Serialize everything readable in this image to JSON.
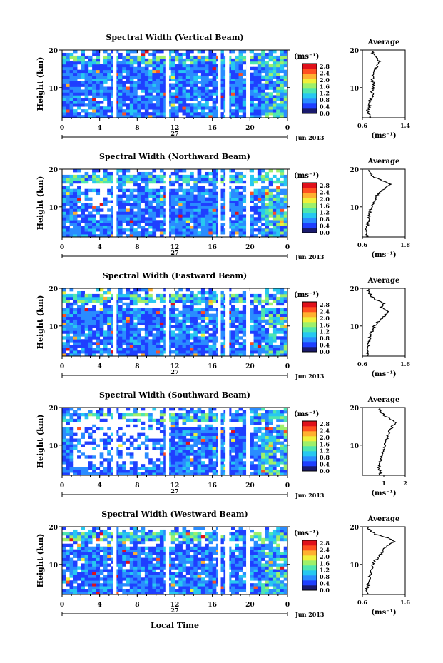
{
  "figure": {
    "xlabel": "Local Time",
    "date_label": "Jun 2013",
    "day_label": "27",
    "ylabel": "Height (km)",
    "unit_label": "(ms⁻¹)",
    "avg_title": "Average",
    "avg_xlabel": "(ms⁻¹)"
  },
  "colorbar": {
    "ticks": [
      "2.8",
      "2.4",
      "2.0",
      "1.6",
      "1.2",
      "0.8",
      "0.4",
      "0.0"
    ],
    "colors": [
      "#1a1a6e",
      "#1f3fff",
      "#2a8cff",
      "#27c8f0",
      "#4ee6b0",
      "#9ef06a",
      "#f0f03a",
      "#ffb030",
      "#ff5020",
      "#e0101a"
    ]
  },
  "chart_data": [
    {
      "type": "heatmap",
      "title": "Spectral Width (Vertical Beam)",
      "x_ticks": [
        "0",
        "4",
        "8",
        "12",
        "16",
        "20",
        "0"
      ],
      "xlim": [
        0,
        24
      ],
      "ylim": [
        2,
        20
      ],
      "y_ticks": [
        "10",
        "20"
      ],
      "avg": {
        "xlim": [
          0.6,
          1.4
        ],
        "x_ticks": [
          "0.6",
          "1.4"
        ],
        "y_ticks": [
          "10",
          "20"
        ],
        "profile": [
          [
            0.75,
            2
          ],
          [
            0.72,
            3
          ],
          [
            0.7,
            4
          ],
          [
            0.74,
            5
          ],
          [
            0.72,
            6
          ],
          [
            0.76,
            7
          ],
          [
            0.8,
            8
          ],
          [
            0.78,
            9
          ],
          [
            0.8,
            10
          ],
          [
            0.82,
            11
          ],
          [
            0.78,
            12
          ],
          [
            0.8,
            13
          ],
          [
            0.82,
            14
          ],
          [
            0.85,
            15
          ],
          [
            0.88,
            16
          ],
          [
            0.92,
            17
          ],
          [
            0.86,
            18
          ],
          [
            0.8,
            19
          ],
          [
            0.78,
            20
          ]
        ]
      }
    },
    {
      "type": "heatmap",
      "title": "Spectral Width (Northward Beam)",
      "x_ticks": [
        "0",
        "4",
        "8",
        "12",
        "16",
        "20",
        "0"
      ],
      "xlim": [
        0,
        24
      ],
      "ylim": [
        2,
        20
      ],
      "y_ticks": [
        "10",
        "20"
      ],
      "avg": {
        "xlim": [
          0.6,
          1.8
        ],
        "x_ticks": [
          "0.6",
          "1.8"
        ],
        "y_ticks": [
          "10",
          "20"
        ],
        "profile": [
          [
            0.75,
            2
          ],
          [
            0.72,
            3
          ],
          [
            0.7,
            4
          ],
          [
            0.74,
            5
          ],
          [
            0.76,
            6
          ],
          [
            0.78,
            7
          ],
          [
            0.8,
            8
          ],
          [
            0.82,
            9
          ],
          [
            0.86,
            10
          ],
          [
            0.9,
            11
          ],
          [
            0.95,
            12
          ],
          [
            1.0,
            13
          ],
          [
            1.1,
            14
          ],
          [
            1.25,
            15
          ],
          [
            1.4,
            16
          ],
          [
            1.15,
            17
          ],
          [
            0.9,
            18
          ],
          [
            0.8,
            19
          ],
          [
            0.75,
            20
          ]
        ]
      }
    },
    {
      "type": "heatmap",
      "title": "Spectral Width (Eastward Beam)",
      "x_ticks": [
        "0",
        "4",
        "8",
        "12",
        "16",
        "20",
        "0"
      ],
      "xlim": [
        0,
        24
      ],
      "ylim": [
        2,
        20
      ],
      "y_ticks": [
        "10",
        "20"
      ],
      "avg": {
        "xlim": [
          0.6,
          1.6
        ],
        "x_ticks": [
          "0.6",
          "1.6"
        ],
        "y_ticks": [
          "10",
          "20"
        ],
        "profile": [
          [
            0.72,
            2
          ],
          [
            0.7,
            3
          ],
          [
            0.72,
            4
          ],
          [
            0.74,
            5
          ],
          [
            0.75,
            6
          ],
          [
            0.78,
            7
          ],
          [
            0.8,
            8
          ],
          [
            0.84,
            9
          ],
          [
            0.88,
            10
          ],
          [
            0.95,
            11
          ],
          [
            1.05,
            12
          ],
          [
            1.15,
            13
          ],
          [
            1.2,
            14
          ],
          [
            1.05,
            15
          ],
          [
            1.1,
            16
          ],
          [
            0.9,
            17
          ],
          [
            0.8,
            18
          ],
          [
            0.75,
            19
          ],
          [
            0.72,
            20
          ]
        ]
      }
    },
    {
      "type": "heatmap",
      "title": "Spectral Width (Southward Beam)",
      "x_ticks": [
        "0",
        "4",
        "8",
        "12",
        "16",
        "20",
        "0"
      ],
      "xlim": [
        0,
        24
      ],
      "ylim": [
        2,
        20
      ],
      "y_ticks": [
        "10",
        "20"
      ],
      "avg": {
        "xlim": [
          0,
          2
        ],
        "x_ticks": [
          "1",
          "2"
        ],
        "y_ticks": [
          "10",
          "20"
        ],
        "profile": [
          [
            0.8,
            2
          ],
          [
            0.85,
            3
          ],
          [
            0.75,
            4
          ],
          [
            0.8,
            5
          ],
          [
            0.85,
            6
          ],
          [
            0.9,
            7
          ],
          [
            0.95,
            8
          ],
          [
            1.0,
            9
          ],
          [
            1.05,
            10
          ],
          [
            1.1,
            11
          ],
          [
            1.15,
            12
          ],
          [
            1.2,
            13
          ],
          [
            1.3,
            14
          ],
          [
            1.4,
            15
          ],
          [
            1.55,
            16
          ],
          [
            1.3,
            17
          ],
          [
            1.0,
            18
          ],
          [
            0.85,
            19
          ],
          [
            0.75,
            20
          ]
        ]
      }
    },
    {
      "type": "heatmap",
      "title": "Spectral Width (Westward Beam)",
      "x_ticks": [
        "0",
        "4",
        "8",
        "12",
        "16",
        "20",
        "0"
      ],
      "xlim": [
        0,
        24
      ],
      "ylim": [
        2,
        20
      ],
      "y_ticks": [
        "10",
        "20"
      ],
      "avg": {
        "xlim": [
          0.6,
          1.6
        ],
        "x_ticks": [
          "0.6",
          "1.6"
        ],
        "y_ticks": [
          "10",
          "20"
        ],
        "profile": [
          [
            0.72,
            2
          ],
          [
            0.7,
            3
          ],
          [
            0.72,
            4
          ],
          [
            0.74,
            5
          ],
          [
            0.76,
            6
          ],
          [
            0.78,
            7
          ],
          [
            0.8,
            8
          ],
          [
            0.82,
            9
          ],
          [
            0.85,
            10
          ],
          [
            0.9,
            11
          ],
          [
            0.98,
            12
          ],
          [
            1.05,
            13
          ],
          [
            1.1,
            14
          ],
          [
            1.2,
            15
          ],
          [
            1.35,
            16
          ],
          [
            1.2,
            17
          ],
          [
            0.9,
            18
          ],
          [
            0.78,
            19
          ],
          [
            0.72,
            20
          ]
        ]
      }
    }
  ]
}
